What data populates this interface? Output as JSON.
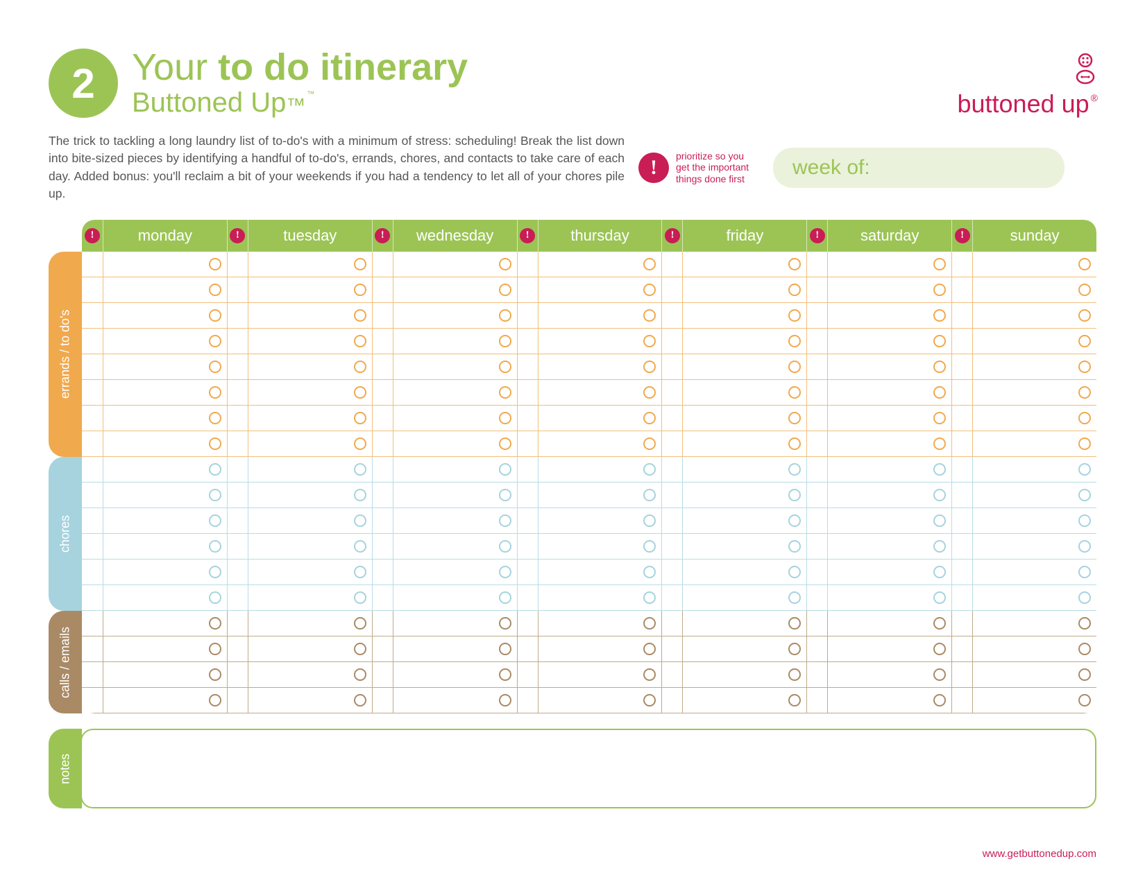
{
  "colors": {
    "green": "#9cc455",
    "green_light": "#eaf2db",
    "magenta": "#c91d56",
    "orange": "#f0a94d",
    "orange_line": "#f2be7a",
    "blue": "#a6d3de",
    "blue_line": "#b7dce5",
    "brown": "#a98a65",
    "brown_line": "#c0a988",
    "text_gray": "#555555",
    "header_green": "#9cc455"
  },
  "header": {
    "badge_number": "2",
    "title_light": "Your ",
    "title_bold": "to do itinerary",
    "brand": "Buttoned Up",
    "tm": "™"
  },
  "logo": {
    "word": "buttoned up",
    "reg": "®"
  },
  "intro": "The trick to tackling a long laundry list of to-do's with a minimum of stress: scheduling! Break the list down into bite-sized pieces by identifying a handful of to-do's, errands, chores, and contacts to take care of each day. Added bonus: you'll reclaim a bit of your weekends if you had a tendency to let all of your chores pile up.",
  "priority_hint": "prioritize so you get the important things done first",
  "week_of_label": "week of:",
  "days": [
    "monday",
    "tuesday",
    "wednesday",
    "thursday",
    "friday",
    "saturday",
    "sunday"
  ],
  "sections": [
    {
      "key": "errands",
      "label": "errands / to do's",
      "rows": 8,
      "color": "#f0a94d",
      "line": "#f2be7a"
    },
    {
      "key": "chores",
      "label": "chores",
      "rows": 6,
      "color": "#a6d3de",
      "line": "#b7dce5"
    },
    {
      "key": "calls",
      "label": "calls / emails",
      "rows": 4,
      "color": "#a98a65",
      "line": "#c0a988"
    }
  ],
  "notes_label": "notes",
  "footer_url": "www.getbuttonedup.com"
}
